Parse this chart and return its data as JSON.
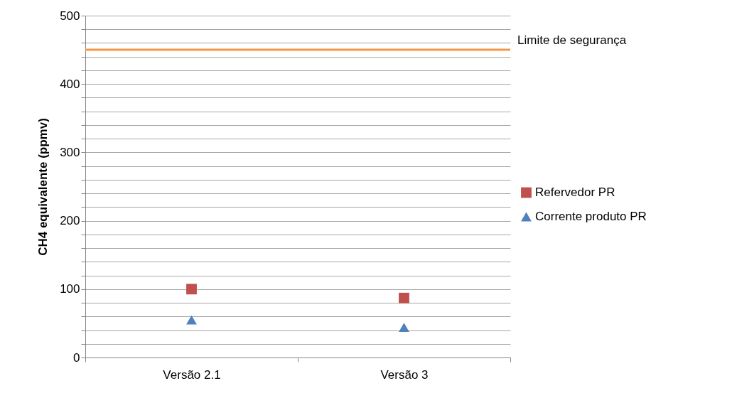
{
  "chart_data": {
    "type": "scatter",
    "ylabel": "CH4 equivalente (ppmv)",
    "categories": [
      "Versão 2.1",
      "Versão 3"
    ],
    "series": [
      {
        "name": "Refervedor PR",
        "color": "#c0504d",
        "marker": "square",
        "values": [
          100,
          87
        ]
      },
      {
        "name": "Corrente produto PR",
        "color": "#4f81bd",
        "marker": "triangle",
        "values": [
          55,
          44
        ]
      }
    ],
    "ylim": [
      0,
      500
    ],
    "yticks": [
      0,
      {
        "value": 20,
        "label": null
      },
      {
        "value": 40,
        "label": null
      },
      {
        "value": 60,
        "label": null
      },
      {
        "value": 80,
        "label": null
      },
      100,
      {
        "value": 120,
        "label": null
      },
      {
        "value": 140,
        "label": null
      },
      {
        "value": 160,
        "label": null
      },
      {
        "value": 180,
        "label": null
      },
      200,
      {
        "value": 220,
        "label": null
      },
      {
        "value": 240,
        "label": null
      },
      {
        "value": 260,
        "label": null
      },
      {
        "value": 280,
        "label": null
      },
      300,
      {
        "value": 320,
        "label": null
      },
      {
        "value": 340,
        "label": null
      },
      {
        "value": 360,
        "label": null
      },
      {
        "value": 380,
        "label": null
      },
      400,
      {
        "value": 420,
        "label": null
      },
      {
        "value": 440,
        "label": null
      },
      {
        "value": 460,
        "label": null
      },
      {
        "value": 480,
        "label": null
      },
      500
    ],
    "ref_lines": [
      {
        "axis": "y",
        "value": 450,
        "label": "Limite de segurança",
        "color": "#f79646"
      }
    ],
    "grid": "y",
    "legend": "right"
  }
}
